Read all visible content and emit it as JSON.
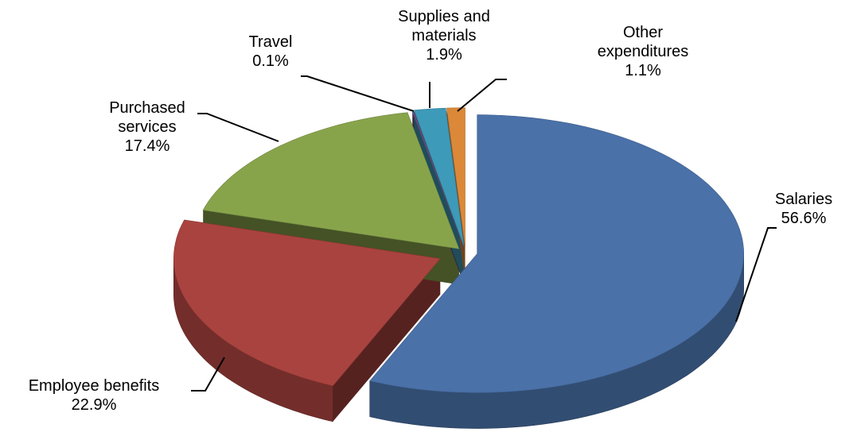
{
  "chart_data": {
    "type": "pie",
    "style": "3d-exploded",
    "categories": [
      "Salaries",
      "Employee benefits",
      "Purchased services",
      "Travel",
      "Supplies and materials",
      "Other expenditures"
    ],
    "values": [
      56.6,
      22.9,
      17.4,
      0.1,
      1.9,
      1.1
    ],
    "unit": "%",
    "colors": [
      "#4A71A8",
      "#A9433F",
      "#88A44B",
      "#6A4F82",
      "#3D9AB8",
      "#DB8839"
    ],
    "legend": "none",
    "data_labels": [
      {
        "lines": [
          "Salaries",
          "56.6%"
        ]
      },
      {
        "lines": [
          "Employee benefits",
          "22.9%"
        ]
      },
      {
        "lines": [
          "Purchased",
          "services",
          "17.4%"
        ]
      },
      {
        "lines": [
          "Travel",
          "0.1%"
        ]
      },
      {
        "lines": [
          "Supplies and",
          "materials",
          "1.9%"
        ]
      },
      {
        "lines": [
          "Other",
          "expenditures",
          "1.1%"
        ]
      }
    ]
  }
}
